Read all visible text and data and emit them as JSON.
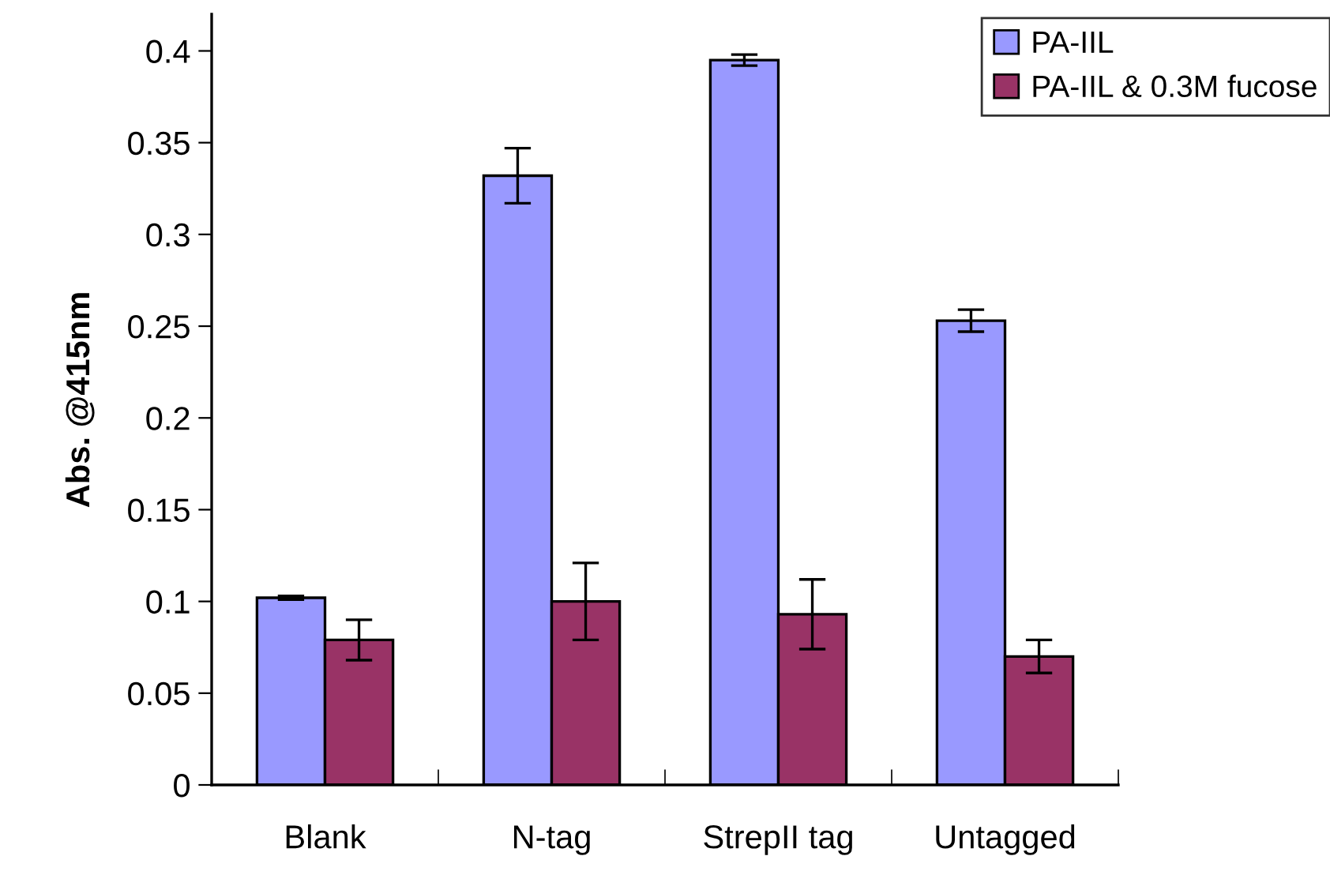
{
  "chart_data": {
    "type": "bar",
    "ylabel": "Abs. @415nm",
    "categories": [
      "Blank",
      "N-tag",
      "StrepII tag",
      "Untagged"
    ],
    "series": [
      {
        "name": "PA-IIL",
        "color": "#9999ff",
        "values": [
          0.102,
          0.332,
          0.395,
          0.253
        ],
        "errors": [
          0.001,
          0.015,
          0.003,
          0.006
        ]
      },
      {
        "name": "PA-IIL & 0.3M fucose",
        "color": "#993366",
        "values": [
          0.079,
          0.1,
          0.093,
          0.07
        ],
        "errors": [
          0.011,
          0.021,
          0.019,
          0.009
        ]
      }
    ],
    "ylim": [
      0,
      0.42
    ],
    "yticks": [
      0,
      0.05,
      0.1,
      0.15,
      0.2,
      0.25,
      0.3,
      0.35,
      0.4
    ],
    "grid": false,
    "legend": "top right"
  }
}
